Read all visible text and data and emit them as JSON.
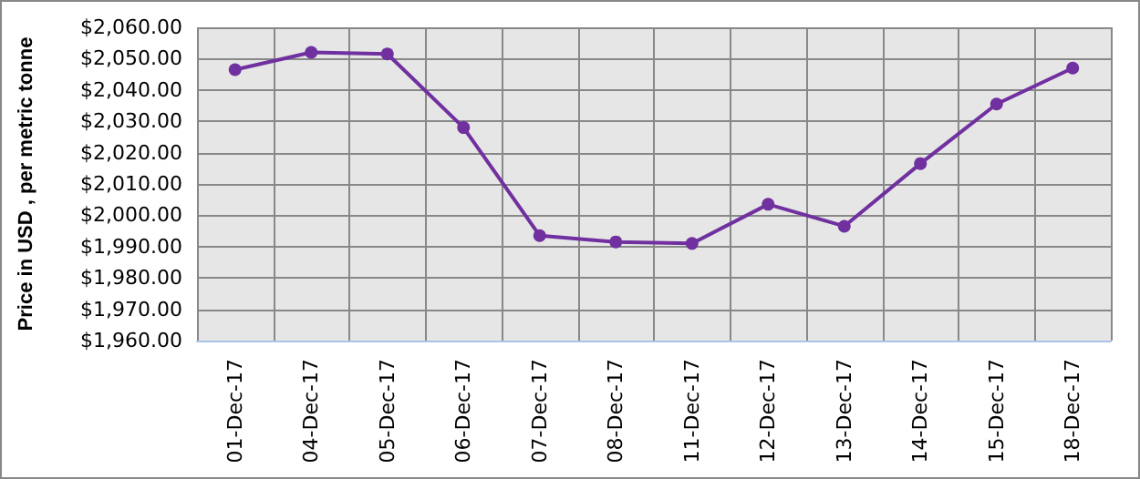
{
  "chart_data": {
    "type": "line",
    "ylabel": "Price in USD , per metric tonne",
    "categories": [
      "01-Dec-17",
      "04-Dec-17",
      "05-Dec-17",
      "06-Dec-17",
      "07-Dec-17",
      "08-Dec-17",
      "11-Dec-17",
      "12-Dec-17",
      "13-Dec-17",
      "14-Dec-17",
      "15-Dec-17",
      "18-Dec-17"
    ],
    "series": [
      {
        "color": "#7030a0",
        "values": [
          2046.5,
          2052,
          2051.5,
          2028,
          1993.5,
          1991.5,
          1991,
          2003.5,
          1996.5,
          2016.5,
          2035.5,
          2047
        ]
      }
    ],
    "ylim": [
      1960,
      2060
    ],
    "yticks": [
      {
        "value": 1960,
        "label": "$1,960.00"
      },
      {
        "value": 1970,
        "label": "$1,970.00"
      },
      {
        "value": 1980,
        "label": "$1,980.00"
      },
      {
        "value": 1990,
        "label": "$1,990.00"
      },
      {
        "value": 2000,
        "label": "$2,000.00"
      },
      {
        "value": 2010,
        "label": "$2,010.00"
      },
      {
        "value": 2020,
        "label": "$2,020.00"
      },
      {
        "value": 2030,
        "label": "$2,030.00"
      },
      {
        "value": 2040,
        "label": "$2,040.00"
      },
      {
        "value": 2050,
        "label": "$2,050.00"
      },
      {
        "value": 2060,
        "label": "$2,060.00"
      }
    ],
    "grid": true,
    "marker": "circle",
    "line_style": "solid"
  }
}
